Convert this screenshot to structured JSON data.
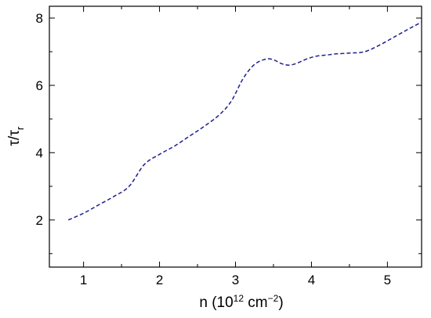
{
  "chart_data": {
    "type": "line",
    "title": "",
    "xlabel": {
      "base": "n (10",
      "exp": "12",
      "unit": " cm",
      "unit_exp": "−2",
      "close": ")"
    },
    "ylabel": {
      "num": "τ",
      "slash": "/",
      "den": "τ",
      "den_sub": "r"
    },
    "xlim": [
      0.55,
      5.45
    ],
    "ylim": [
      0.6,
      8.35
    ],
    "xticks": [
      1,
      2,
      3,
      4,
      5
    ],
    "yticks": [
      2,
      4,
      6,
      8
    ],
    "xminor": [
      1.5,
      2.5,
      3.5,
      4.5
    ],
    "yminor": [
      1,
      3,
      5,
      7
    ],
    "grid": false,
    "series": [
      {
        "color": "#1f1f8f",
        "style": "dashed",
        "x": [
          0.8,
          1.0,
          1.2,
          1.4,
          1.6,
          1.8,
          2.0,
          2.2,
          2.4,
          2.6,
          2.8,
          2.95,
          3.1,
          3.25,
          3.4,
          3.5,
          3.6,
          3.7,
          3.8,
          3.9,
          4.0,
          4.1,
          4.2,
          4.3,
          4.5,
          4.7,
          4.9,
          5.1,
          5.3,
          5.45
        ],
        "y": [
          2.0,
          2.2,
          2.45,
          2.7,
          3.0,
          3.65,
          3.95,
          4.2,
          4.5,
          4.8,
          5.15,
          5.55,
          6.2,
          6.62,
          6.78,
          6.76,
          6.65,
          6.6,
          6.65,
          6.75,
          6.83,
          6.88,
          6.9,
          6.93,
          6.96,
          7.0,
          7.2,
          7.45,
          7.7,
          7.88
        ]
      }
    ]
  }
}
